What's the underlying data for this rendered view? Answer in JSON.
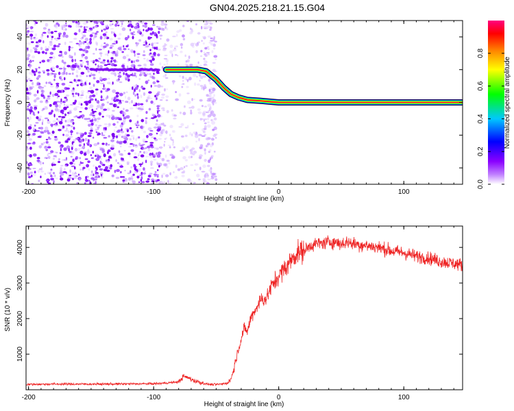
{
  "figure_title": "GN04.2025.218.21.15.G04",
  "chart_data": [
    {
      "type": "heatmap",
      "xlabel": "Height of straight line (km)",
      "ylabel": "Frequency (Hz)",
      "xlim": [
        -202,
        147
      ],
      "ylim": [
        -50,
        50
      ],
      "xticks": [
        -200,
        -100,
        0,
        100
      ],
      "yticks": [
        -40,
        -20,
        0,
        20,
        40
      ],
      "colorbar": {
        "label": "Normalized spectral amplitude",
        "range": [
          0,
          1
        ],
        "ticks": [
          0.0,
          0.2,
          0.4,
          0.6,
          0.8
        ],
        "colors": [
          "#ffffff",
          "#8a00ff",
          "#0000ff",
          "#00c8ff",
          "#00ff00",
          "#ffff00",
          "#ff8000",
          "#ff0000",
          "#ff0080"
        ]
      },
      "ridge": [
        {
          "x": -90,
          "y": 20
        },
        {
          "x": -65,
          "y": 20
        },
        {
          "x": -58,
          "y": 19
        },
        {
          "x": -50,
          "y": 14
        },
        {
          "x": -44,
          "y": 9
        },
        {
          "x": -38,
          "y": 5
        },
        {
          "x": -32,
          "y": 3
        },
        {
          "x": -25,
          "y": 1.5
        },
        {
          "x": -15,
          "y": 1
        },
        {
          "x": -5,
          "y": 0.3
        },
        {
          "x": 0,
          "y": 0
        },
        {
          "x": 147,
          "y": 0
        }
      ],
      "noise_region": [
        -202,
        -50
      ]
    },
    {
      "type": "line",
      "xlabel": "Height of straight line (km)",
      "ylabel": "SNR (10 * v/v)",
      "xlim": [
        -202,
        147
      ],
      "ylim": [
        0,
        4600
      ],
      "xticks": [
        -200,
        -100,
        0,
        100
      ],
      "yticks": [
        1000,
        2000,
        3000,
        4000
      ],
      "series": [
        {
          "color": "#ee2222",
          "x": [
            -202,
            -180,
            -160,
            -140,
            -120,
            -100,
            -90,
            -80,
            -76,
            -72,
            -68,
            -64,
            -60,
            -55,
            -50,
            -45,
            -40,
            -37,
            -34,
            -31,
            -28,
            -25,
            -22,
            -18,
            -14,
            -10,
            -6,
            -2,
            2,
            6,
            10,
            15,
            20,
            25,
            30,
            35,
            40,
            45,
            50,
            55,
            60,
            70,
            80,
            90,
            100,
            110,
            120,
            130,
            140,
            147
          ],
          "y": [
            150,
            160,
            160,
            160,
            165,
            170,
            190,
            220,
            380,
            330,
            260,
            220,
            180,
            150,
            150,
            160,
            200,
            420,
            900,
            1300,
            1700,
            1650,
            2050,
            2300,
            2550,
            2550,
            2900,
            3100,
            3300,
            3450,
            3650,
            3850,
            3900,
            4050,
            4100,
            4120,
            4150,
            4150,
            4100,
            4150,
            4100,
            4050,
            4000,
            3900,
            3850,
            3750,
            3700,
            3600,
            3550,
            3500
          ]
        }
      ]
    }
  ]
}
